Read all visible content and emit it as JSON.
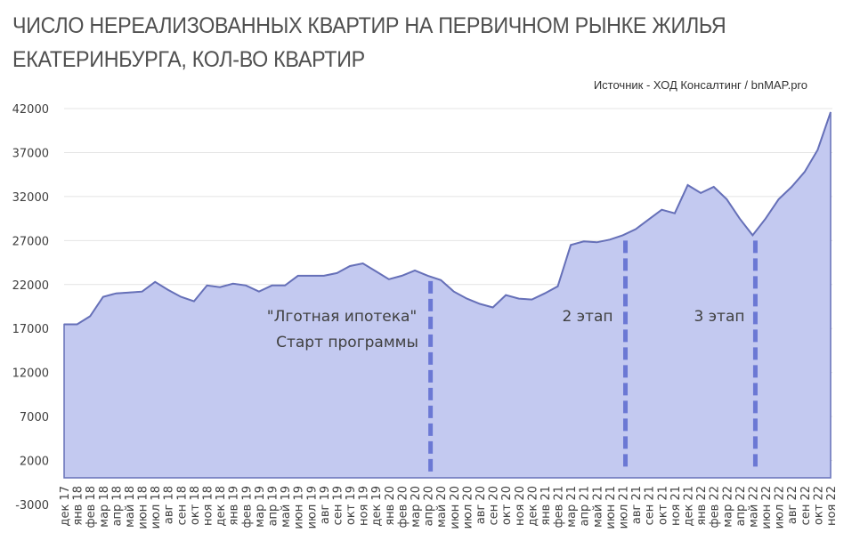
{
  "header": {
    "title_line1": "ЧИСЛО НЕРЕАЛИЗОВАННЫХ КВАРТИР НА ПЕРВИЧНОМ РЫНКЕ ЖИЛЬЯ",
    "title_line2": "ЕКАТЕРИНБУРГА, КОЛ-ВО КВАРТИР",
    "source": "Источник - ХОД Консалтинг  / bnMAP.pro"
  },
  "annotations": {
    "program_line1": "\"Лготная ипотека\"",
    "program_line2": "Старт программы",
    "stage2": "2 этап",
    "stage3": "3 этап"
  },
  "colors": {
    "fill": "#c3c9f0",
    "line": "#6670b8",
    "dash": "#6b78d4",
    "grid": "#e4e4e4"
  },
  "chart_data": {
    "type": "area",
    "title": "ЧИСЛО НЕРЕАЛИЗОВАННЫХ КВАРТИР НА ПЕРВИЧНОМ РЫНКЕ ЖИЛЬЯ ЕКАТЕРИНБУРГА, КОЛ-ВО КВАРТИР",
    "subtitle": "Источник - ХОД Консалтинг  / bnMAP.pro",
    "xlabel": "",
    "ylabel": "",
    "ylim": [
      -3000,
      42000
    ],
    "yticks": [
      -3000,
      2000,
      7000,
      12000,
      17000,
      22000,
      27000,
      32000,
      37000,
      42000
    ],
    "grid": true,
    "legend": "none",
    "categories": [
      "дек 17",
      "янв 18",
      "фев 18",
      "мар 18",
      "апр 18",
      "май 18",
      "июн 18",
      "июл 18",
      "авг 18",
      "сен 18",
      "окт 18",
      "ноя 18",
      "дек 18",
      "янв 19",
      "фев 19",
      "мар 19",
      "апр 19",
      "май 19",
      "июн 19",
      "июл 19",
      "авг 19",
      "сен 19",
      "окт 19",
      "ноя 19",
      "дек 19",
      "янв 20",
      "фев 20",
      "мар 20",
      "апр 20",
      "май 20",
      "июн 20",
      "июл 20",
      "авг 20",
      "сен 20",
      "окт 20",
      "ноя 20",
      "дек 20",
      "янв 21",
      "фев 21",
      "мар 21",
      "апр 21",
      "май 21",
      "июн 21",
      "июл 21",
      "авг 21",
      "сен 21",
      "окт 21",
      "ноя 21",
      "дек 21",
      "янв 22",
      "фев 22",
      "мар 22",
      "апр 22",
      "май 22",
      "июн 22",
      "июл 22",
      "авг 22",
      "сен 22",
      "окт 22",
      "ноя 22"
    ],
    "values": [
      17480,
      17480,
      18400,
      20600,
      21000,
      21100,
      21200,
      22300,
      21400,
      20600,
      20100,
      21900,
      21700,
      22100,
      21900,
      21200,
      21900,
      21900,
      23000,
      23000,
      23000,
      23300,
      24100,
      24400,
      23500,
      22600,
      23000,
      23600,
      23000,
      22500,
      21200,
      20400,
      19800,
      19400,
      20800,
      20400,
      20300,
      21000,
      21800,
      26500,
      26900,
      26800,
      27100,
      27600,
      28300,
      29400,
      30500,
      30100,
      33300,
      32400,
      33100,
      31700,
      29500,
      27600,
      29500,
      31700,
      33100,
      34800,
      37300,
      41600
    ],
    "annotations": [
      {
        "category": "апр 20",
        "text": "\"Лготная ипотека\" Старт программы",
        "style": "dashed vertical line"
      },
      {
        "category": "июл 21",
        "text": "2 этап",
        "style": "dashed vertical line"
      },
      {
        "category": "май 22",
        "text": "3 этап",
        "style": "dashed vertical line"
      }
    ]
  }
}
